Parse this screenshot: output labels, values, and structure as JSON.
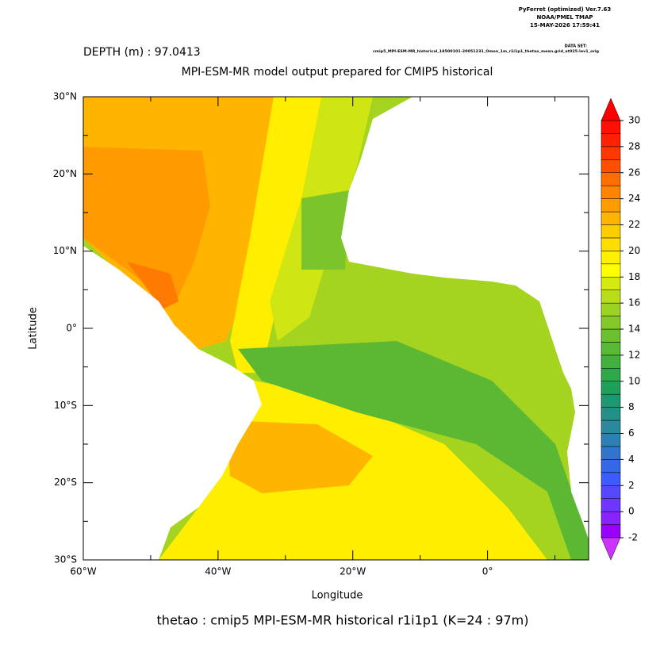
{
  "header": {
    "software": "PyFerret (optimized) Ver.7.63",
    "organization": "NOAA/PMEL TMAP",
    "timestamp": "15-MAY-2026 17:59:41",
    "dataset_label": "DATA SET:",
    "dataset": "cmip5_MPI-ESM-MR_historical_18500101-20051231_Omon_1m_r1i1p1_thetao_mean.grid_at025-lev1_orig"
  },
  "depth_label": "DEPTH (m) : 97.0413",
  "title": "MPI-ESM-MR model output prepared for CMIP5 historical",
  "map": {
    "xlabel": "Longitude",
    "ylabel": "Latitude",
    "xlim": [
      -60,
      15
    ],
    "ylim": [
      -30,
      30
    ],
    "xticks": [
      {
        "value": -60,
        "label": "60°W"
      },
      {
        "value": -40,
        "label": "40°W"
      },
      {
        "value": -20,
        "label": "20°W"
      },
      {
        "value": 0,
        "label": "0°"
      }
    ],
    "xminor": [
      -50,
      -30,
      -10,
      10
    ],
    "yticks": [
      {
        "value": 30,
        "label": "30°N"
      },
      {
        "value": 20,
        "label": "20°N"
      },
      {
        "value": 10,
        "label": "10°N"
      },
      {
        "value": 0,
        "label": "0°"
      },
      {
        "value": -10,
        "label": "10°S"
      },
      {
        "value": -20,
        "label": "20°S"
      },
      {
        "value": -30,
        "label": "30°S"
      }
    ],
    "yminor": [
      25,
      15,
      5,
      -5,
      -15,
      -25
    ]
  },
  "colorbar": {
    "levels": [
      -2,
      0,
      2,
      4,
      6,
      8,
      10,
      12,
      14,
      16,
      18,
      20,
      22,
      24,
      26,
      28,
      30
    ],
    "colors": [
      "#9a00ff",
      "#8a22ff",
      "#6f36ff",
      "#5548ff",
      "#3d5cff",
      "#3568e6",
      "#3274cc",
      "#2e80b4",
      "#2a899c",
      "#238f86",
      "#1c9770",
      "#1e9f5a",
      "#2ea848",
      "#42b03c",
      "#58b934",
      "#6cc02e",
      "#84c92a",
      "#9cd222",
      "#b8de1a",
      "#d6ea10",
      "#ffff00",
      "#ffef00",
      "#ffde00",
      "#ffcd00",
      "#ffb400",
      "#ff9c00",
      "#ff8400",
      "#ff6c00",
      "#ff5000",
      "#ff3800",
      "#ff2000",
      "#ff1000"
    ],
    "over_color": "#ff0000",
    "under_color": "#cc33ff"
  },
  "caption": "thetao : cmip5 MPI-ESM-MR historical r1i1p1    (K=24 : 97m)"
}
